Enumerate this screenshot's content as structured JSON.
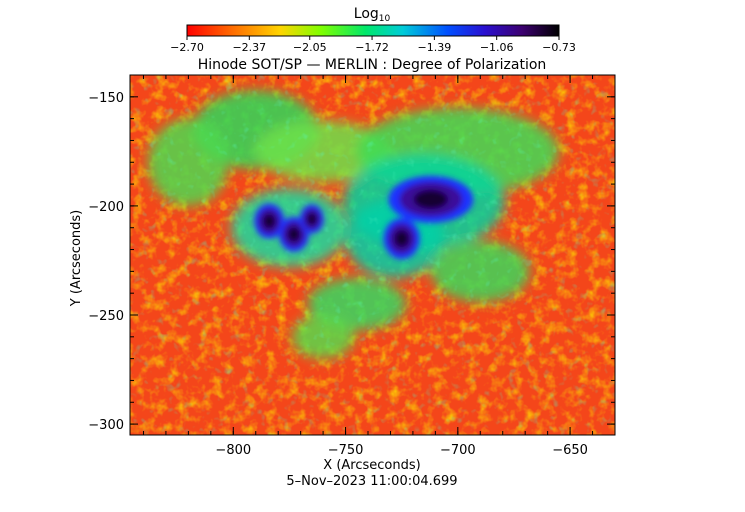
{
  "chart_data": {
    "type": "heatmap",
    "instrument": "Hinode SOT/SP",
    "title": "Hinode SOT/SP — MERLIN : Degree of Polarization",
    "xlabel": "X (Arcseconds)",
    "ylabel": "Y (Arcseconds)",
    "timestamp": "5–Nov–2023 11:00:04.699",
    "xlim": [
      -846,
      -630
    ],
    "ylim": [
      -305,
      -140
    ],
    "x_ticks": [
      -800,
      -750,
      -700,
      -650
    ],
    "x_tick_labels": [
      "−800",
      "−750",
      "−700",
      "−650"
    ],
    "y_ticks": [
      -150,
      -200,
      -250,
      -300
    ],
    "y_tick_labels": [
      "−150",
      "−200",
      "−250",
      "−300"
    ],
    "colorbar": {
      "label_main": "Log",
      "label_sub": "10",
      "colormap": "rainbow (red → yellow → green → cyan → blue → violet → black)",
      "range": [
        -2.7,
        -0.73
      ],
      "ticks": [
        -2.7,
        -2.37,
        -2.05,
        -1.72,
        -1.39,
        -1.06,
        -0.73
      ],
      "tick_labels": [
        "−2.70",
        "−2.37",
        "−2.05",
        "−1.72",
        "−1.39",
        "−1.06",
        "−0.73"
      ]
    },
    "features": [
      {
        "kind": "sunspot umbra",
        "x": -712,
        "y": -197,
        "rx": 14,
        "ry": 8
      },
      {
        "kind": "sunspot umbra",
        "x": -725,
        "y": -215,
        "rx": 6,
        "ry": 7
      },
      {
        "kind": "sunspot umbra",
        "x": -784,
        "y": -207,
        "rx": 5,
        "ry": 6
      },
      {
        "kind": "sunspot umbra",
        "x": -773,
        "y": -213,
        "rx": 5,
        "ry": 6
      },
      {
        "kind": "sunspot umbra",
        "x": -765,
        "y": -206,
        "rx": 4,
        "ry": 5
      }
    ],
    "background_level": -2.55,
    "grid": false
  }
}
